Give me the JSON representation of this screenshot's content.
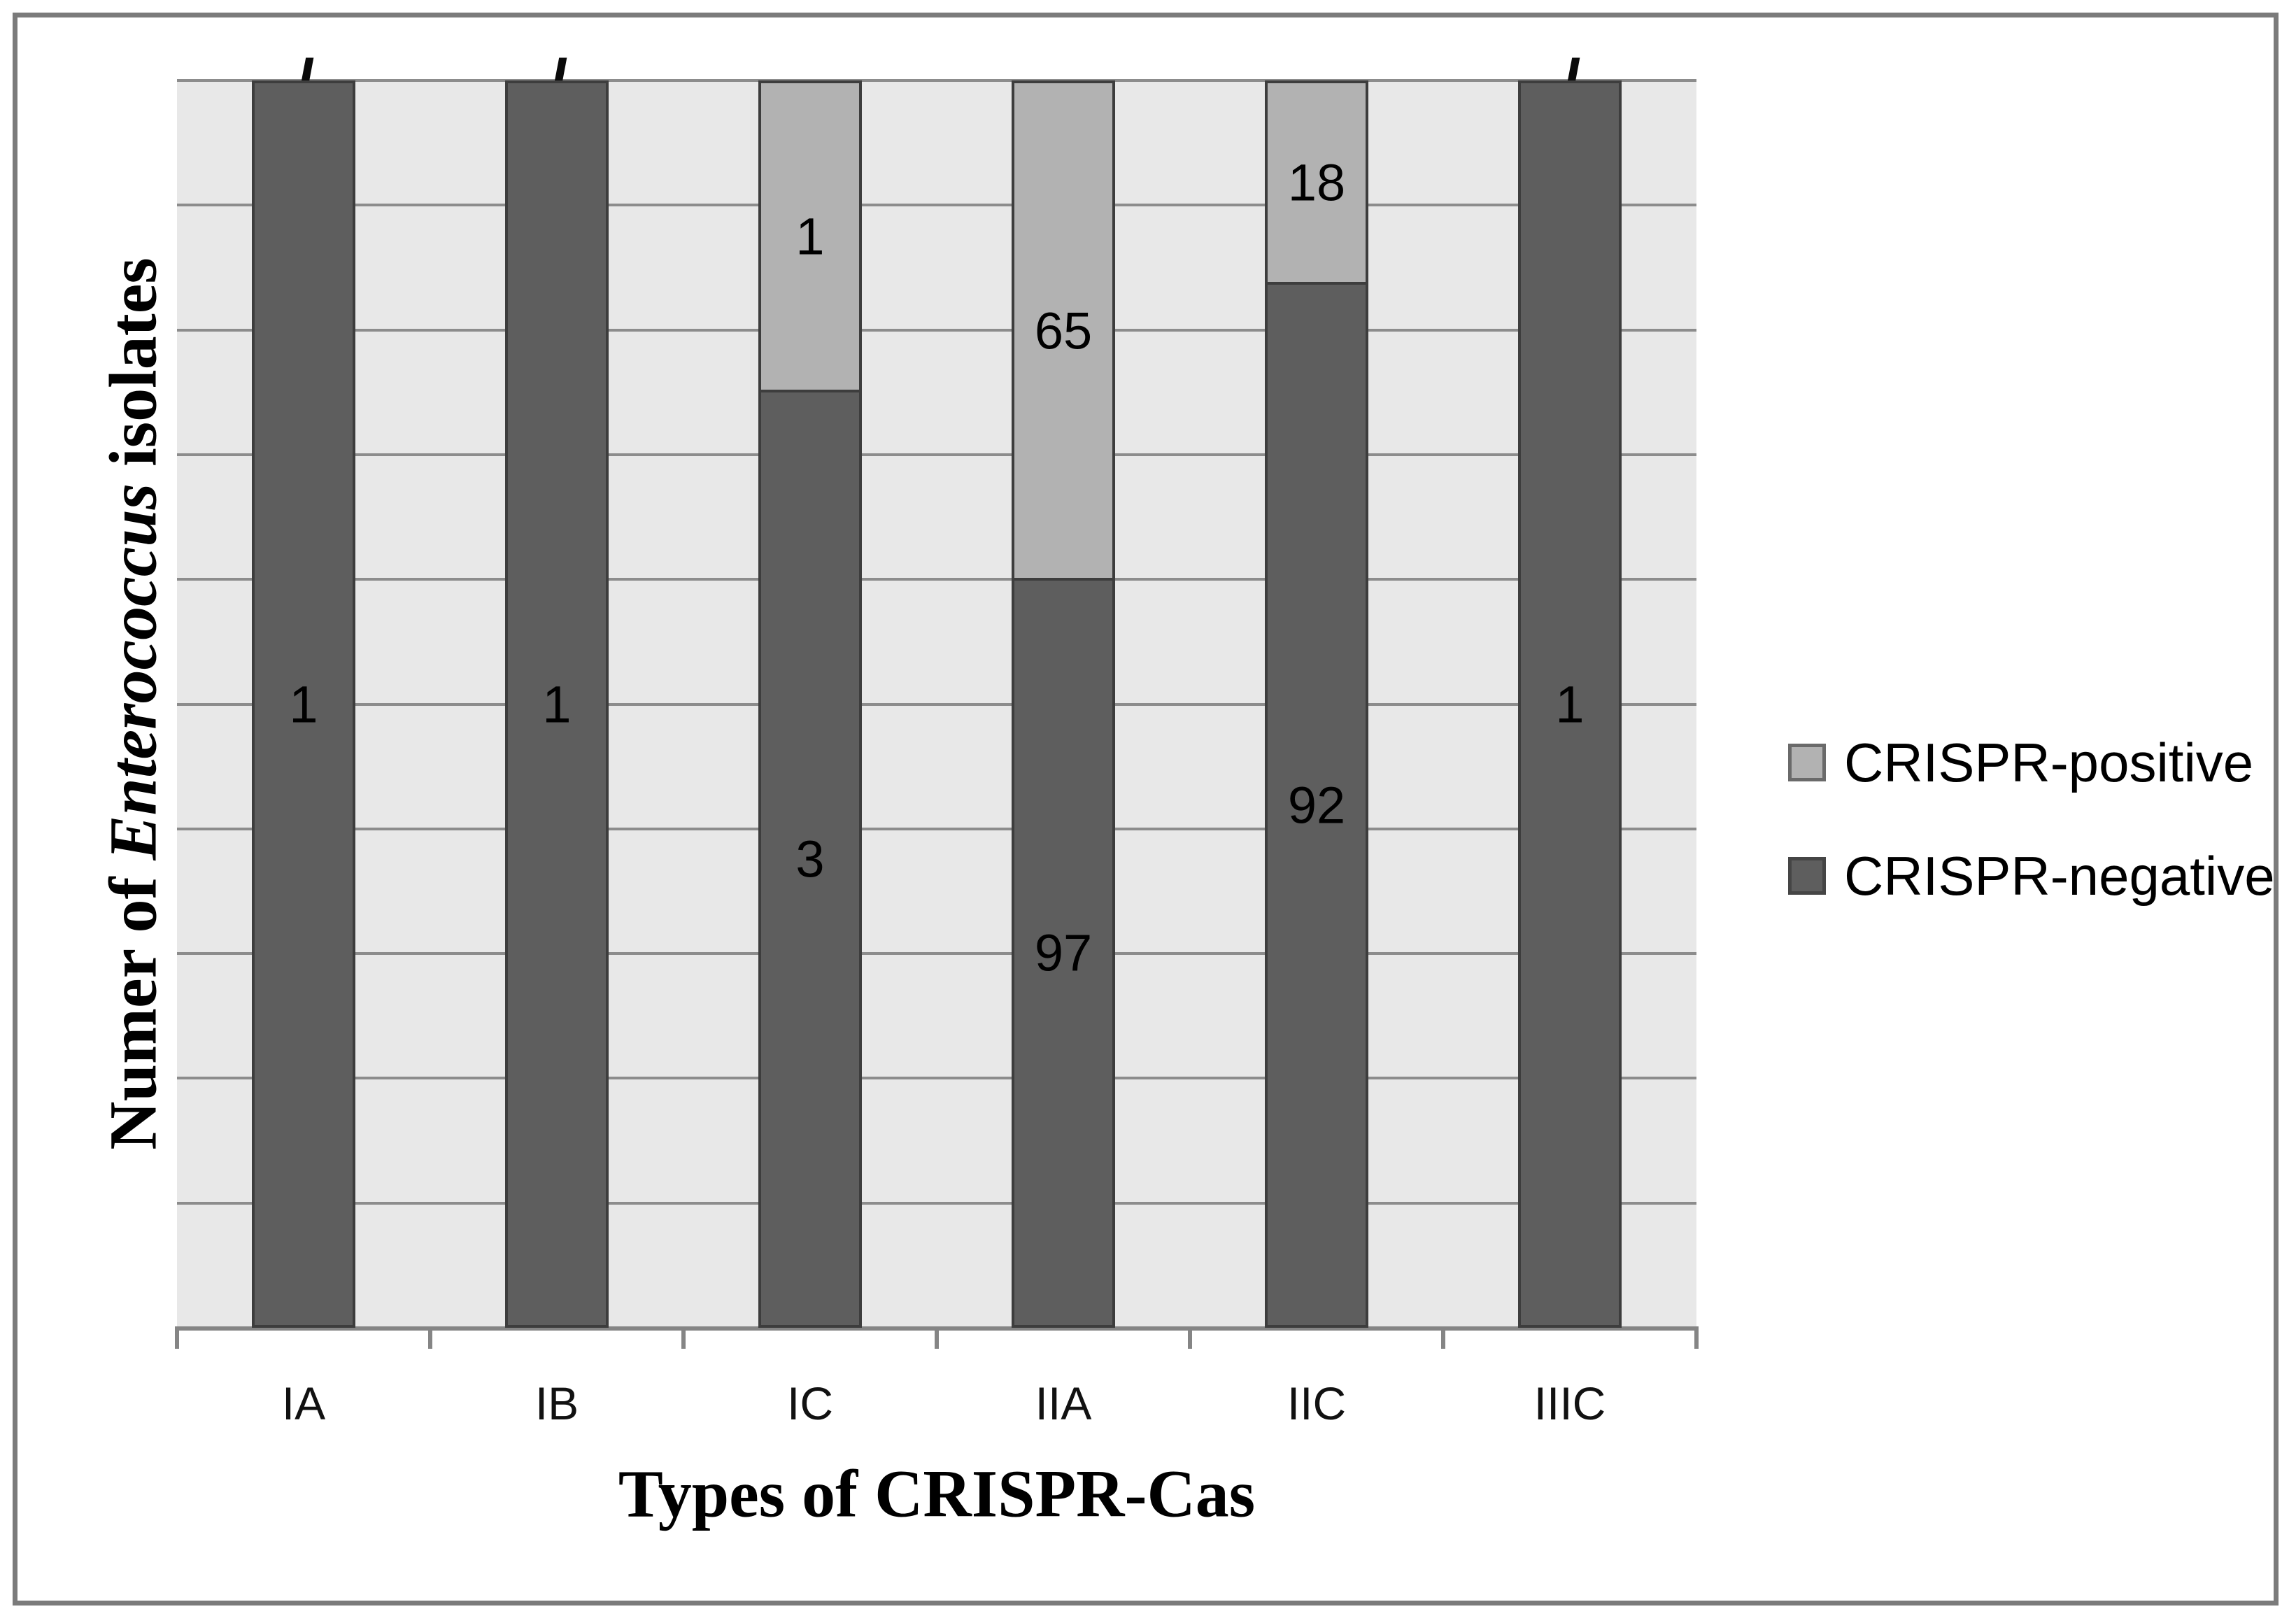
{
  "figure": {
    "y_axis_title_prefix": "Numer of ",
    "y_axis_title_italic": "Enterococcus",
    "y_axis_title_suffix": " isolates",
    "x_axis_title": "Types of CRISPR-Cas",
    "no_data_marker": "/"
  },
  "legend": {
    "items": [
      {
        "label": "CRISPR-positive",
        "color": "#b2b2b2"
      },
      {
        "label": "CRISPR-negative",
        "color": "#5e5e5e"
      }
    ],
    "position": "right"
  },
  "colors": {
    "plot_background": "#e8e8e8",
    "gridline": "#8c8c8c",
    "axis_line": "#858585",
    "bar_border": "#3d3d3d",
    "positive_fill": "#b2b2b2",
    "negative_fill": "#5e5e5e",
    "frame_border": "#7b7b7b"
  },
  "chart_data": {
    "type": "bar",
    "subtype": "stacked-100-percent",
    "title": "",
    "xlabel": "Types of CRISPR-Cas",
    "ylabel": "Numer of Enterococcus isolates",
    "categories": [
      "IA",
      "IB",
      "IC",
      "IIA",
      "IIC",
      "IIIC"
    ],
    "series": [
      {
        "name": "CRISPR-positive",
        "values": [
          0,
          0,
          1,
          65,
          18,
          0
        ],
        "data_labels": [
          "/",
          "/",
          "1",
          "65",
          "18",
          "/"
        ],
        "color": "#b2b2b2"
      },
      {
        "name": "CRISPR-negative",
        "values": [
          1,
          1,
          3,
          97,
          92,
          1
        ],
        "data_labels": [
          "1",
          "1",
          "3",
          "97",
          "92",
          "1"
        ],
        "color": "#5e5e5e"
      }
    ],
    "y_axis": {
      "ticks_visible": false,
      "range_percent": [
        0,
        100
      ],
      "gridline_interval_percent": 10,
      "gridline_count": 11
    },
    "legend_position": "right",
    "grid": "horizontal-only"
  }
}
